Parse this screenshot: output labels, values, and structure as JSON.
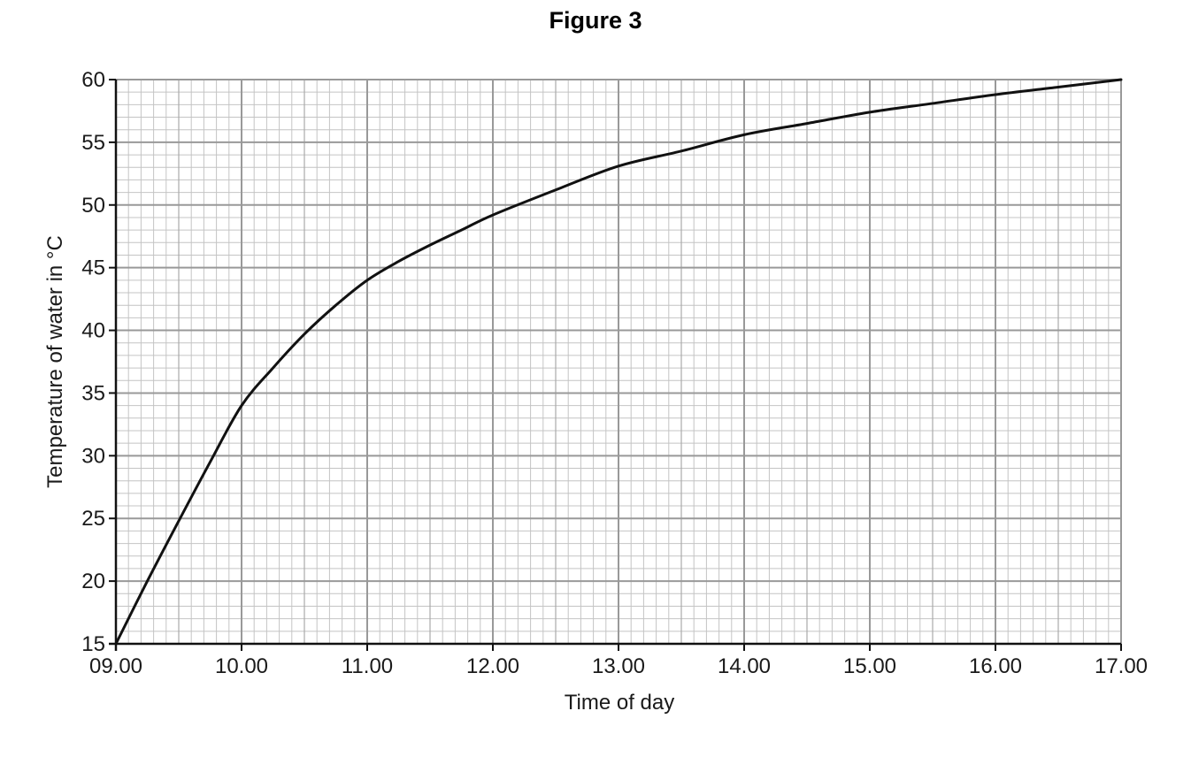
{
  "figure": {
    "title": "Figure 3"
  },
  "chart_data": {
    "type": "line",
    "title": "Figure 3",
    "xlabel": "Time of day",
    "ylabel": "Temperature of water in °C",
    "x_tick_labels": [
      "09.00",
      "10.00",
      "11.00",
      "12.00",
      "13.00",
      "14.00",
      "15.00",
      "16.00",
      "17.00"
    ],
    "y_tick_labels": [
      "15",
      "20",
      "25",
      "30",
      "35",
      "40",
      "45",
      "50",
      "55",
      "60"
    ],
    "xlim": [
      "09.00",
      "17.00"
    ],
    "ylim": [
      15,
      60
    ],
    "grid": true,
    "series": [
      {
        "x": [
          "09.00",
          "09.15",
          "09.30",
          "09.45",
          "10.00",
          "10.15",
          "10.30",
          "10.45",
          "11.00",
          "11.15",
          "11.30",
          "11.45",
          "12.00",
          "12.30",
          "13.00",
          "13.30",
          "14.00",
          "14.30",
          "15.00",
          "15.30",
          "16.00",
          "16.30",
          "17.00"
        ],
        "y": [
          15.0,
          20.0,
          24.8,
          29.5,
          34.0,
          37.0,
          39.7,
          42.0,
          44.0,
          45.5,
          46.8,
          48.0,
          49.2,
          51.2,
          53.1,
          54.3,
          55.6,
          56.5,
          57.4,
          58.1,
          58.8,
          59.4,
          60.0
        ]
      }
    ],
    "colors": {
      "line": "#111111",
      "major_grid": "#999999",
      "minor_grid": "#c4c4c4",
      "axes": "#111111"
    }
  }
}
